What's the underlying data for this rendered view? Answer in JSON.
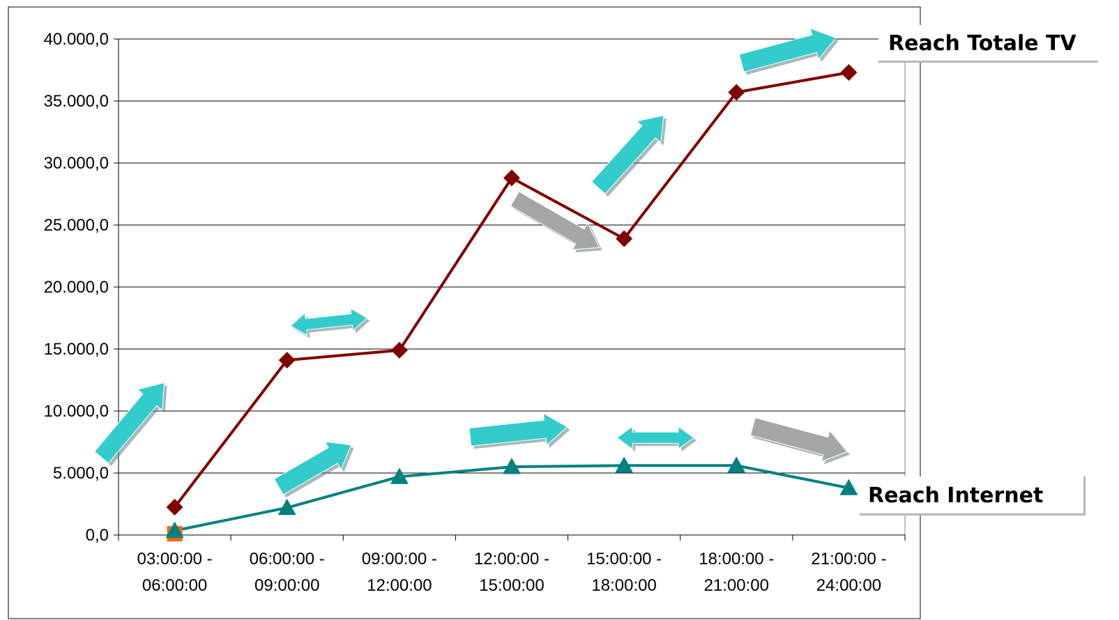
{
  "chart_data": {
    "type": "line",
    "categories": [
      [
        "03:00:00 -",
        "06:00:00"
      ],
      [
        "06:00:00 -",
        "09:00:00"
      ],
      [
        "09:00:00 -",
        "12:00:00"
      ],
      [
        "12:00:00 -",
        "15:00:00"
      ],
      [
        "15:00:00 -",
        "18:00:00"
      ],
      [
        "18:00:00 -",
        "21:00:00"
      ],
      [
        "21:00:00 -",
        "24:00:00"
      ]
    ],
    "series": [
      {
        "name": "Reach Totale TV",
        "color": "#800000",
        "marker": "diamond",
        "values": [
          2250,
          14100,
          14900,
          28800,
          23900,
          35700,
          37300
        ]
      },
      {
        "name": "Reach Internet",
        "color": "#008080",
        "marker": "triangle",
        "values": [
          350,
          2200,
          4700,
          5500,
          5600,
          5600,
          3800
        ]
      }
    ],
    "extra_point": {
      "category_index": 0,
      "value": 100,
      "color": "#FF6600",
      "marker": "square"
    },
    "ylim": [
      0,
      40000
    ],
    "yticks": [
      0,
      5000,
      10000,
      15000,
      20000,
      25000,
      30000,
      35000,
      40000
    ],
    "ytick_labels": [
      "0,0",
      "5.000,0",
      "10.000,0",
      "15.000,0",
      "20.000,0",
      "25.000,0",
      "30.000,0",
      "35.000,0",
      "40.000,0"
    ],
    "grid": true,
    "annotations": [
      {
        "type": "arrow-up",
        "color": "#33CCCC",
        "near": {
          "series": 0,
          "category_index": 0
        }
      },
      {
        "type": "arrow-double",
        "color": "#33CCCC",
        "near": {
          "series": 0,
          "category_index": 1
        }
      },
      {
        "type": "arrow-down",
        "color": "#A6A6A6",
        "near": {
          "series": 0,
          "category_index": 3
        }
      },
      {
        "type": "arrow-up",
        "color": "#33CCCC",
        "near": {
          "series": 0,
          "category_index": 4
        }
      },
      {
        "type": "arrow-up",
        "color": "#33CCCC",
        "near": {
          "series": 0,
          "category_index": 5
        }
      },
      {
        "type": "arrow-up",
        "color": "#33CCCC",
        "near": {
          "series": 1,
          "category_index": 1
        }
      },
      {
        "type": "arrow-up",
        "color": "#33CCCC",
        "near": {
          "series": 1,
          "category_index": 3
        }
      },
      {
        "type": "arrow-double",
        "color": "#33CCCC",
        "near": {
          "series": 1,
          "category_index": 4
        }
      },
      {
        "type": "arrow-down",
        "color": "#A6A6A6",
        "near": {
          "series": 1,
          "category_index": 6
        }
      }
    ]
  },
  "callouts": {
    "tv": "Reach Totale TV",
    "internet": "Reach Internet"
  }
}
